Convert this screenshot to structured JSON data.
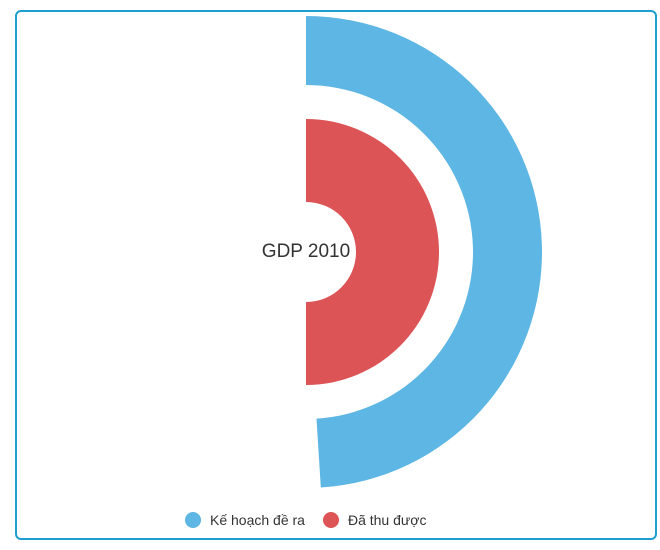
{
  "chart_data": {
    "type": "pie",
    "subtype": "radial-bar",
    "center_label": "GDP 2010",
    "series": [
      {
        "name": "Kế hoạch đề ra",
        "value": 0.49,
        "color": "#5db6e4"
      },
      {
        "name": "Đã thu được",
        "value": 0.5,
        "color": "#dc5455"
      }
    ],
    "legend_position": "bottom-center"
  }
}
